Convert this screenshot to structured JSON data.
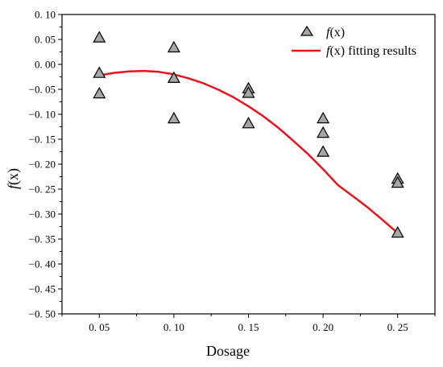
{
  "chart_data": {
    "type": "scatter",
    "xlabel": "Dosage",
    "ylabel": "f(x)",
    "xlim": [
      0.025,
      0.275
    ],
    "ylim": [
      -0.5,
      0.1
    ],
    "x_ticks": [
      0.05,
      0.1,
      0.15,
      0.2,
      0.25
    ],
    "x_tick_labels": [
      "0. 05",
      "0. 10",
      "0. 15",
      "0. 20",
      "0. 25"
    ],
    "y_ticks": [
      0.1,
      0.05,
      0.0,
      -0.05,
      -0.1,
      -0.15,
      -0.2,
      -0.25,
      -0.3,
      -0.35,
      -0.4,
      -0.45,
      -0.5
    ],
    "y_tick_labels": [
      "0. 10",
      "0. 05",
      "0. 00",
      "−0. 05",
      "−0. 10",
      "−0. 15",
      "−0. 20",
      "−0. 25",
      "−0. 30",
      "−0. 35",
      "−0. 40",
      "−0. 45",
      "−0. 50"
    ],
    "grid": false,
    "legend_position": "top-right",
    "series": [
      {
        "name": "f(x)",
        "kind": "scatter",
        "marker": "triangle",
        "color": "#a6a6a6",
        "points": [
          [
            0.05,
            0.053
          ],
          [
            0.05,
            -0.018
          ],
          [
            0.05,
            -0.059
          ],
          [
            0.1,
            0.033
          ],
          [
            0.1,
            -0.028
          ],
          [
            0.1,
            -0.109
          ],
          [
            0.15,
            -0.049
          ],
          [
            0.15,
            -0.058
          ],
          [
            0.15,
            -0.119
          ],
          [
            0.2,
            -0.109
          ],
          [
            0.2,
            -0.138
          ],
          [
            0.2,
            -0.176
          ],
          [
            0.25,
            -0.23
          ],
          [
            0.25,
            -0.238
          ],
          [
            0.25,
            -0.338
          ]
        ]
      },
      {
        "name": "f(x) fitting results",
        "kind": "line",
        "color": "#e8141b",
        "points": [
          [
            0.05,
            -0.022
          ],
          [
            0.06,
            -0.017
          ],
          [
            0.07,
            -0.014
          ],
          [
            0.08,
            -0.013
          ],
          [
            0.09,
            -0.015
          ],
          [
            0.1,
            -0.02
          ],
          [
            0.11,
            -0.028
          ],
          [
            0.12,
            -0.038
          ],
          [
            0.13,
            -0.051
          ],
          [
            0.14,
            -0.066
          ],
          [
            0.15,
            -0.084
          ],
          [
            0.16,
            -0.104
          ],
          [
            0.17,
            -0.127
          ],
          [
            0.18,
            -0.153
          ],
          [
            0.19,
            -0.18
          ],
          [
            0.2,
            -0.21
          ],
          [
            0.21,
            -0.242
          ],
          [
            0.22,
            -0.264
          ],
          [
            0.23,
            -0.287
          ],
          [
            0.24,
            -0.312
          ],
          [
            0.25,
            -0.338
          ]
        ]
      }
    ]
  },
  "legend": {
    "scatter_label_prefix": "f",
    "scatter_label_var": "(x)",
    "line_label_prefix": "f",
    "line_label_var": "(x)",
    "line_label_suffix": " fitting results"
  },
  "axes": {
    "ylabel_f": "f",
    "ylabel_var": "(x)"
  },
  "colors": {
    "marker_fill": "#a6a6a6",
    "fit_line": "#e8141b",
    "axis": "#000000"
  }
}
